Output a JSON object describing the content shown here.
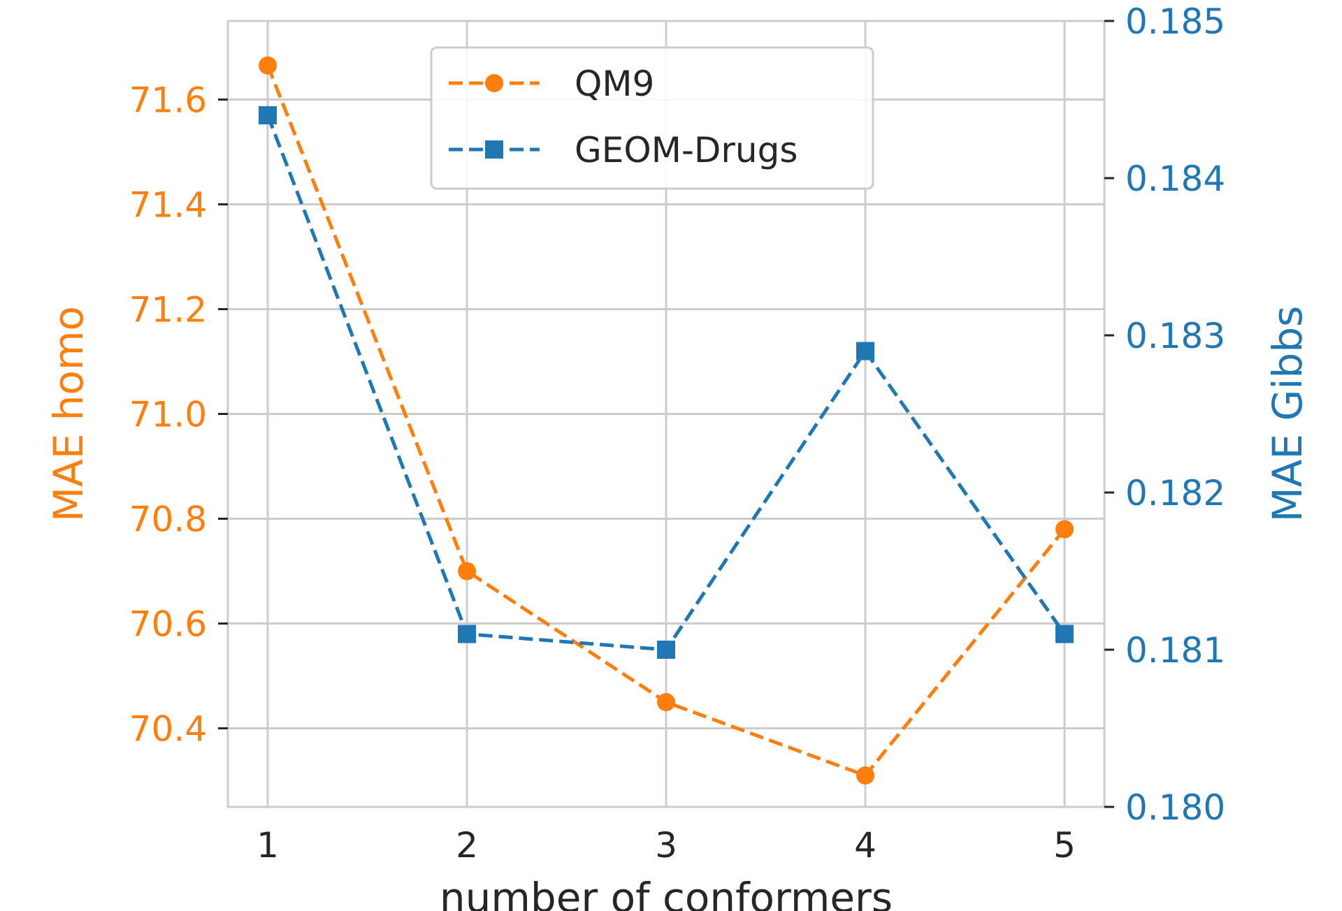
{
  "chart_data": {
    "type": "line",
    "x": [
      1,
      2,
      3,
      4,
      5
    ],
    "xticks": [
      "1",
      "2",
      "3",
      "4",
      "5"
    ],
    "xlabel": "number of conformers",
    "series": [
      {
        "name": "QM9",
        "axis": "left",
        "color": "#ff7f0e",
        "marker": "circle",
        "linestyle": "dashed",
        "values": [
          71.665,
          70.7,
          70.45,
          70.31,
          70.78
        ]
      },
      {
        "name": "GEOM-Drugs",
        "axis": "right",
        "color": "#1f77b4",
        "marker": "square",
        "linestyle": "dashed",
        "values": [
          0.1844,
          0.1811,
          0.181,
          0.1829,
          0.1811
        ]
      }
    ],
    "y_left": {
      "label": "MAE homo",
      "ylim": [
        70.25,
        71.75
      ],
      "ticks": [
        "70.4",
        "70.6",
        "70.8",
        "71.0",
        "71.2",
        "71.4",
        "71.6"
      ],
      "tick_values": [
        70.4,
        70.6,
        70.8,
        71.0,
        71.2,
        71.4,
        71.6
      ],
      "color": "#ff7f0e"
    },
    "y_right": {
      "label": "MAE Gibbs",
      "ylim": [
        0.18,
        0.185
      ],
      "ticks": [
        "0.180",
        "0.181",
        "0.182",
        "0.183",
        "0.184",
        "0.185"
      ],
      "tick_values": [
        0.18,
        0.181,
        0.182,
        0.183,
        0.184,
        0.185
      ],
      "color": "#1f77b4"
    },
    "xlim": [
      0.8,
      5.2
    ],
    "grid": true,
    "legend": {
      "location": "top-center",
      "entries": [
        "QM9",
        "GEOM-Drugs"
      ]
    },
    "axis_text_color": "#262626",
    "grid_color": "#cccccc"
  }
}
